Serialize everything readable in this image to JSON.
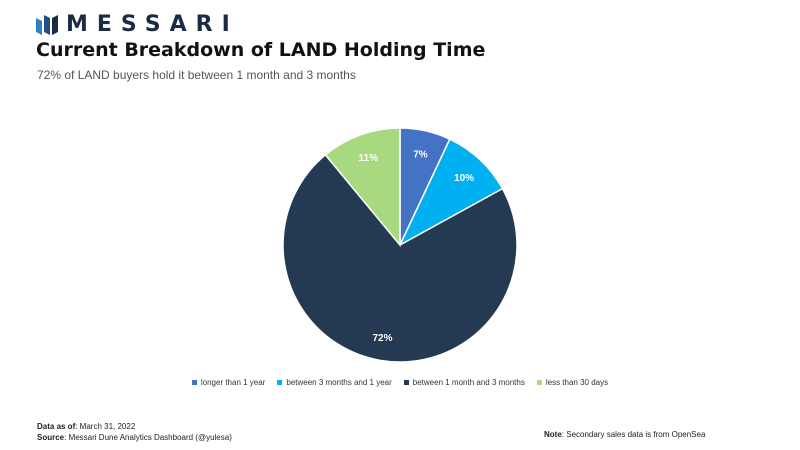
{
  "brand": {
    "name": "MESSARI",
    "colors": [
      "#2f7fc1",
      "#1e4f8a",
      "#1a2b45"
    ]
  },
  "header": {
    "title": "Current Breakdown of LAND Holding Time",
    "subtitle": "72% of LAND buyers hold it between 1 month and 3 months"
  },
  "chart_data": {
    "type": "pie",
    "start_angle_deg": 0,
    "direction": "clockwise",
    "slices": [
      {
        "name": "longer than 1 year",
        "value": 7,
        "label": "7%",
        "color": "#4472c4",
        "label_color": "#ffffff"
      },
      {
        "name": "between 3 months and 1 year",
        "value": 10,
        "label": "10%",
        "color": "#00b0f0",
        "label_color": "#ffffff"
      },
      {
        "name": "between 1 month and 3 months",
        "value": 72,
        "label": "72%",
        "color": "#243a52",
        "label_color": "#ffffff"
      },
      {
        "name": "less than 30 days",
        "value": 11,
        "label": "11%",
        "color": "#a9d97f",
        "label_color": "#ffffff"
      }
    ],
    "legend_position": "bottom"
  },
  "footer": {
    "data_as_of_label": "Data as of",
    "data_as_of_value": ": March 31, 2022",
    "source_label": "Source",
    "source_value": ": Messari Dune Analytics Dashboard (@yulesa)",
    "note_label": "Note",
    "note_value": ": Secondary sales data is from OpenSea"
  }
}
